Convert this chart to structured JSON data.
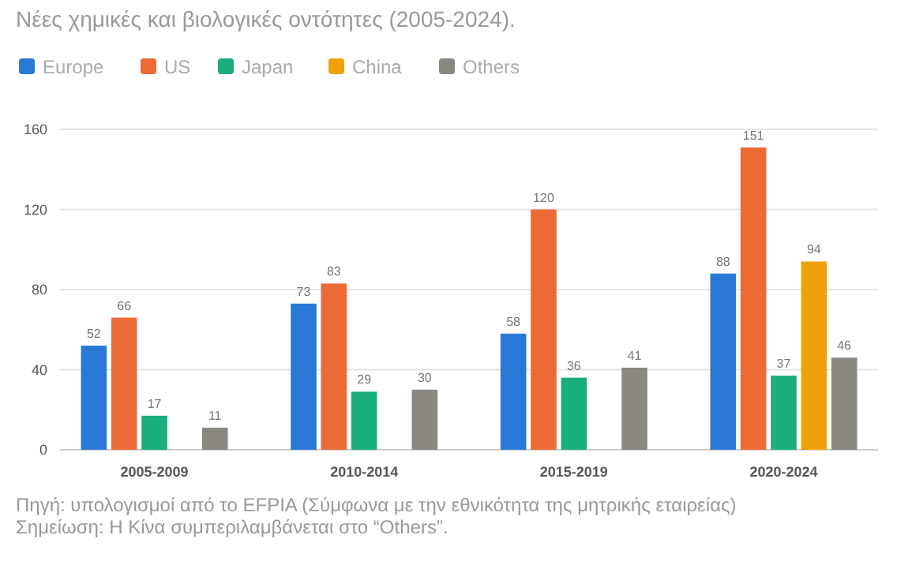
{
  "chart_data": {
    "type": "bar",
    "title": "Νέες χημικές και βιολογικές οντότητες (2005-2024).",
    "categories": [
      "2005-2009",
      "2010-2014",
      "2015-2019",
      "2020-2024"
    ],
    "series": [
      {
        "name": "Europe",
        "color": "#2a78d6",
        "values": [
          52,
          73,
          58,
          88
        ]
      },
      {
        "name": "US",
        "color": "#ec6a35",
        "values": [
          66,
          83,
          120,
          151
        ]
      },
      {
        "name": "Japan",
        "color": "#1aae7c",
        "values": [
          17,
          29,
          36,
          37
        ]
      },
      {
        "name": "China",
        "color": "#f0a10a",
        "values": [
          null,
          null,
          null,
          94
        ]
      },
      {
        "name": "Others",
        "color": "#8a8781",
        "values": [
          11,
          30,
          41,
          46
        ]
      }
    ],
    "ylim": [
      0,
      160
    ],
    "yticks": [
      0,
      40,
      80,
      120,
      160
    ],
    "grid": "y",
    "legend": "top left",
    "data_labels": true,
    "annotations": [
      "Πηγή: υπολογισμοί από το EFPIA (Σύμφωνα με την εθνικότητα της μητρικής εταιρείας)",
      "Σημείωση: Η Κίνα συμπεριλαμβάνεται στο “Others”."
    ]
  }
}
